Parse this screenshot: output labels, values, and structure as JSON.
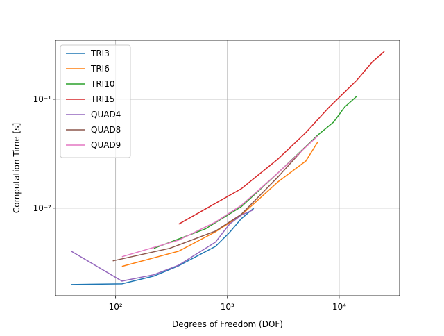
{
  "chart_data": {
    "type": "line",
    "x_label": "Degrees of Freedom (DOF)",
    "y_label": "Computation Time [s]",
    "xscale": "log",
    "yscale": "log",
    "grid": true,
    "legend_position": "upper-left",
    "xlim": [
      29,
      34700
    ],
    "ylim": [
      0.00157,
      0.348
    ],
    "xticks": [
      {
        "value": 100,
        "label": "10²"
      },
      {
        "value": 1000,
        "label": "10³"
      },
      {
        "value": 10000,
        "label": "10⁴"
      }
    ],
    "yticks": [
      {
        "value": 0.01,
        "label": "10⁻²"
      },
      {
        "value": 0.1,
        "label": "10⁻¹"
      }
    ],
    "series": [
      {
        "name": "TRI3",
        "color": "#1f77b4",
        "x": [
          40,
          114,
          220,
          367,
          783,
          1045,
          1330,
          1722
        ],
        "values": [
          0.00199,
          0.00202,
          0.00238,
          0.00296,
          0.00446,
          0.00598,
          0.008,
          0.01
        ]
      },
      {
        "name": "TRI6",
        "color": "#ff7f0e",
        "x": [
          114,
          367,
          783,
          1330,
          2840,
          5030,
          6410
        ],
        "values": [
          0.00292,
          0.00403,
          0.00607,
          0.00863,
          0.01746,
          0.0271,
          0.0403
        ]
      },
      {
        "name": "TRI10",
        "color": "#2ca02c",
        "x": [
          220,
          633,
          1330,
          2840,
          6410,
          8910,
          11210,
          14290
        ],
        "values": [
          0.00428,
          0.00644,
          0.0103,
          0.0211,
          0.0467,
          0.0617,
          0.0851,
          0.106
        ]
      },
      {
        "name": "TRI15",
        "color": "#d62728",
        "x": [
          367,
          1330,
          2840,
          5030,
          8070,
          14290,
          19860,
          25360
        ],
        "values": [
          0.00714,
          0.01507,
          0.0283,
          0.0494,
          0.0839,
          0.1486,
          0.221,
          0.275
        ]
      },
      {
        "name": "QUAD4",
        "color": "#9467bd",
        "x": [
          40,
          114,
          220,
          367,
          783,
          1045,
          1330,
          1722
        ],
        "values": [
          0.00403,
          0.00214,
          0.00245,
          0.003,
          0.00488,
          0.00714,
          0.00863,
          0.0097
        ]
      },
      {
        "name": "QUAD8",
        "color": "#8c564b",
        "x": [
          94.4,
          305,
          783,
          1330,
          2840,
          5030
        ],
        "values": [
          0.00328,
          0.00428,
          0.00616,
          0.00877,
          0.0194,
          0.0369
        ]
      },
      {
        "name": "QUAD9",
        "color": "#e377c2",
        "x": [
          114,
          367,
          783,
          1330,
          2840,
          6410
        ],
        "values": [
          0.00358,
          0.00509,
          0.00746,
          0.0106,
          0.0211,
          0.0459
        ]
      }
    ]
  }
}
